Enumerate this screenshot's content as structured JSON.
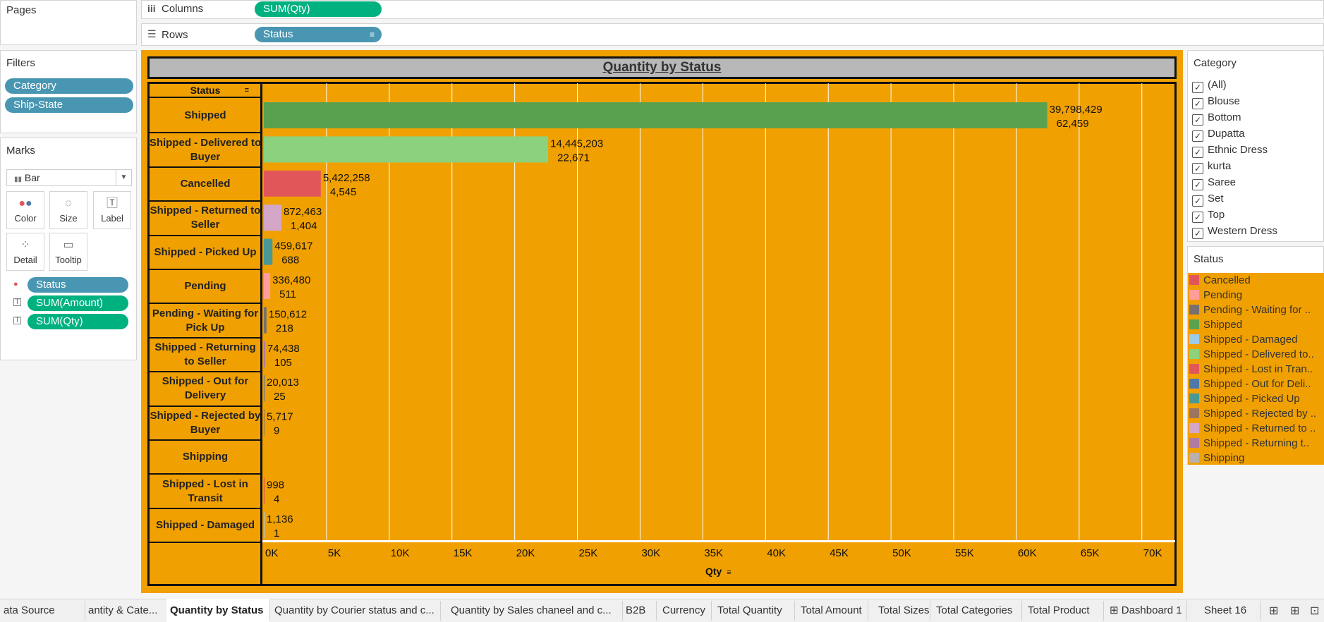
{
  "shelves": {
    "pages_label": "Pages",
    "columns_icon": "columns-icon",
    "columns_label": "Columns",
    "columns_pill": "SUM(Qty)",
    "rows_icon": "rows-icon",
    "rows_label": "Rows",
    "rows_pill": "Status"
  },
  "filters": {
    "title": "Filters",
    "items": [
      "Category",
      "Ship-State"
    ]
  },
  "marks": {
    "title": "Marks",
    "mark_type": "Bar",
    "buttons": [
      {
        "label": "Color",
        "icon": "color-icon"
      },
      {
        "label": "Size",
        "icon": "size-icon"
      },
      {
        "label": "Label",
        "icon": "label-icon"
      },
      {
        "label": "Detail",
        "icon": "detail-icon"
      },
      {
        "label": "Tooltip",
        "icon": "tooltip-icon"
      }
    ],
    "fields": [
      {
        "name": "Status",
        "icon": "color-icon"
      },
      {
        "name": "SUM(Amount)",
        "icon": "label-icon"
      },
      {
        "name": "SUM(Qty)",
        "icon": "label-icon"
      }
    ]
  },
  "category_filter": {
    "title": "Category",
    "items": [
      "(All)",
      "Blouse",
      "Bottom",
      "Dupatta",
      "Ethnic Dress",
      "kurta",
      "Saree",
      "Set",
      "Top",
      "Western Dress"
    ]
  },
  "status_legend": {
    "title": "Status",
    "items": [
      {
        "label": "Cancelled",
        "color": "#e15759"
      },
      {
        "label": "Pending",
        "color": "#ff9d9a"
      },
      {
        "label": "Pending - Waiting for ..",
        "color": "#79706e"
      },
      {
        "label": "Shipped",
        "color": "#59a14f"
      },
      {
        "label": "Shipped - Damaged",
        "color": "#a0cbe8"
      },
      {
        "label": "Shipped - Delivered to..",
        "color": "#8cd17d"
      },
      {
        "label": "Shipped - Lost in Tran..",
        "color": "#e15759"
      },
      {
        "label": "Shipped - Out for Deli..",
        "color": "#4e79a7"
      },
      {
        "label": "Shipped - Picked Up",
        "color": "#499894"
      },
      {
        "label": "Shipped - Rejected by ..",
        "color": "#9c755f"
      },
      {
        "label": "Shipped - Returned to ..",
        "color": "#d4a6c8"
      },
      {
        "label": "Shipped - Returning t..",
        "color": "#b07aa1"
      },
      {
        "label": "Shipping",
        "color": "#bab0ac"
      }
    ]
  },
  "chart_data": {
    "type": "bar",
    "title": "Quantity by Status",
    "row_header": "Status",
    "xlabel": "Qty",
    "xlim": [
      0,
      71250
    ],
    "x_ticks": [
      "0K",
      "5K",
      "10K",
      "15K",
      "20K",
      "25K",
      "30K",
      "35K",
      "40K",
      "45K",
      "50K",
      "55K",
      "60K",
      "65K",
      "70K"
    ],
    "categories": [
      "Shipped",
      "Shipped - Delivered to Buyer",
      "Cancelled",
      "Shipped - Returned to Seller",
      "Shipped - Picked Up",
      "Pending",
      "Pending - Waiting for Pick Up",
      "Shipped - Returning to Seller",
      "Shipped - Out for Delivery",
      "Shipped - Rejected by Buyer",
      "Shipping",
      "Shipped - Lost in Transit",
      "Shipped - Damaged"
    ],
    "series": [
      {
        "name": "SUM(Qty)",
        "values": [
          62459,
          22671,
          4545,
          1404,
          688,
          511,
          218,
          105,
          25,
          9,
          0,
          4,
          1
        ]
      },
      {
        "name": "SUM(Amount)",
        "values": [
          "39,798,429",
          "14,445,203",
          "5,422,258",
          "872,463",
          "459,617",
          "336,480",
          "150,612",
          "74,438",
          "20,013",
          "5,717",
          "",
          "998",
          "1,136"
        ]
      }
    ],
    "qty_labels": [
      "62,459",
      "22,671",
      "4,545",
      "1,404",
      "688",
      "511",
      "218",
      "105",
      "25",
      "9",
      "",
      "4",
      "1"
    ],
    "colors": [
      "#59a14f",
      "#8cd17d",
      "#e15759",
      "#d4a6c8",
      "#499894",
      "#ff9d9a",
      "#79706e",
      "#b07aa1",
      "#4e79a7",
      "#9c755f",
      "#bab0ac",
      "#e15759",
      "#a0cbe8"
    ],
    "grid": true,
    "background": "#f0a000"
  },
  "tabs": [
    {
      "label": "ata Source"
    },
    {
      "label": "antity & Cate..."
    },
    {
      "label": "Quantity by Status",
      "active": true
    },
    {
      "label": "Quantity by Courier status and c..."
    },
    {
      "label": "Quantity by Sales chaneel and c..."
    },
    {
      "label": "B2B"
    },
    {
      "label": "Currency"
    },
    {
      "label": "Total Quantity"
    },
    {
      "label": "Total Amount"
    },
    {
      "label": "Total Sizes"
    },
    {
      "label": "Total Categories"
    },
    {
      "label": "Total Product"
    },
    {
      "label": "Dashboard 1",
      "icon": "dashboard-icon"
    },
    {
      "label": "Sheet 16"
    }
  ],
  "tab_icons": [
    "new-worksheet-icon",
    "new-dashboard-icon",
    "new-story-icon"
  ]
}
